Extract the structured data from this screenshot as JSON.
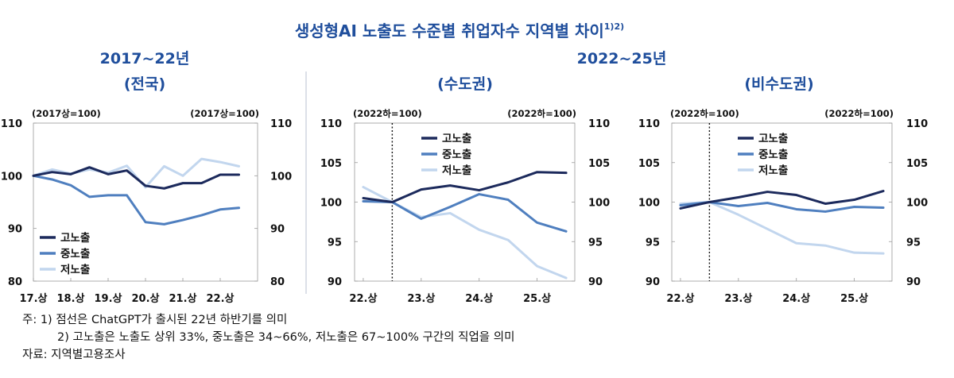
{
  "header": {
    "title": "생성형AI 노출도 수준별 취업자수 지역별 차이",
    "title_sup": "1)2)",
    "left_period": "2017~22년",
    "right_period": "2022~25년"
  },
  "notes": {
    "note1": "주: 1) 점선은 ChatGPT가 출시된 22년 하반기를 의미",
    "note2": "2) 고노출은 노출도 상위 33%, 중노출은 34~66%, 저노출은 67~100% 구간의 직업을 의미",
    "source": "자료: 지역별고용조사"
  },
  "colors": {
    "high": "#1c2a5c",
    "mid": "#4f7fbf",
    "low": "#c2d6ee"
  },
  "chart_data": [
    {
      "type": "line",
      "title": "(전국)",
      "base_left": "(2017상=100)",
      "base_right": "(2017상=100)",
      "ylim": [
        80,
        110
      ],
      "yticks": [
        "80",
        "90",
        "100",
        "110"
      ],
      "ytick_values": [
        80,
        90,
        100,
        110
      ],
      "x": [
        0,
        1,
        2,
        3,
        4,
        5,
        6,
        7,
        8,
        9,
        10,
        11
      ],
      "xlim": [
        0,
        12
      ],
      "xtick_labels": [
        "17.상",
        "18.상",
        "19.상",
        "20.상",
        "21.상",
        "22.상"
      ],
      "xtick_positions": [
        0,
        2,
        4,
        6,
        8,
        10
      ],
      "legend_position": "bottom-left",
      "dotted_at": null,
      "series": [
        {
          "name": "고노출",
          "key": "high",
          "values": [
            100,
            100.7,
            100.3,
            101.6,
            100.3,
            101.0,
            98.1,
            97.6,
            98.6,
            98.6,
            100.2,
            100.2
          ]
        },
        {
          "name": "중노출",
          "key": "mid",
          "values": [
            100,
            99.3,
            98.2,
            96.0,
            96.3,
            96.3,
            91.2,
            90.8,
            91.6,
            92.5,
            93.6,
            93.9
          ]
        },
        {
          "name": "저노출",
          "key": "low",
          "values": [
            100,
            101.2,
            100.4,
            101.2,
            100.6,
            101.9,
            97.8,
            101.8,
            100.0,
            103.2,
            102.6,
            101.8
          ]
        }
      ]
    },
    {
      "type": "line",
      "title": "(수도권)",
      "base_left": "(2022하=100)",
      "base_right": "(2022하=100)",
      "ylim": [
        90,
        110
      ],
      "yticks": [
        "90",
        "95",
        "100",
        "105",
        "110"
      ],
      "ytick_values": [
        90,
        95,
        100,
        105,
        110
      ],
      "x": [
        0,
        1,
        2,
        3,
        4,
        5,
        6,
        7
      ],
      "xlim": [
        -0.3,
        7.3
      ],
      "xtick_labels": [
        "22.상",
        "23.상",
        "24.상",
        "25.상"
      ],
      "xtick_positions": [
        0,
        2,
        4,
        6
      ],
      "legend_position": "top-center",
      "dotted_at": 1,
      "series": [
        {
          "name": "고노출",
          "key": "high",
          "values": [
            100.5,
            100.0,
            101.6,
            102.1,
            101.5,
            102.5,
            103.8,
            103.7
          ]
        },
        {
          "name": "중노출",
          "key": "mid",
          "values": [
            100.1,
            100.0,
            97.9,
            99.4,
            101.0,
            100.3,
            97.4,
            96.3
          ]
        },
        {
          "name": "저노출",
          "key": "low",
          "values": [
            101.9,
            100.0,
            98.1,
            98.6,
            96.5,
            95.2,
            91.9,
            90.4
          ]
        }
      ]
    },
    {
      "type": "line",
      "title": "(비수도권)",
      "base_left": "(2022하=100)",
      "base_right": "(2022하=100)",
      "ylim": [
        90,
        110
      ],
      "yticks": [
        "90",
        "95",
        "100",
        "105",
        "110"
      ],
      "ytick_values": [
        90,
        95,
        100,
        105,
        110
      ],
      "x": [
        0,
        1,
        2,
        3,
        4,
        5,
        6,
        7
      ],
      "xlim": [
        -0.3,
        7.3
      ],
      "xtick_labels": [
        "22.상",
        "23.상",
        "24.상",
        "25.상"
      ],
      "xtick_positions": [
        0,
        2,
        4,
        6
      ],
      "legend_position": "top-center",
      "dotted_at": 1,
      "series": [
        {
          "name": "고노출",
          "key": "high",
          "values": [
            99.2,
            100.0,
            100.6,
            101.3,
            100.9,
            99.8,
            100.3,
            101.4
          ]
        },
        {
          "name": "중노출",
          "key": "mid",
          "values": [
            99.6,
            100.0,
            99.5,
            99.9,
            99.1,
            98.8,
            99.4,
            99.3
          ]
        },
        {
          "name": "저노출",
          "key": "low",
          "values": [
            99.8,
            100.0,
            98.4,
            96.6,
            94.8,
            94.5,
            93.6,
            93.5
          ]
        }
      ]
    }
  ]
}
